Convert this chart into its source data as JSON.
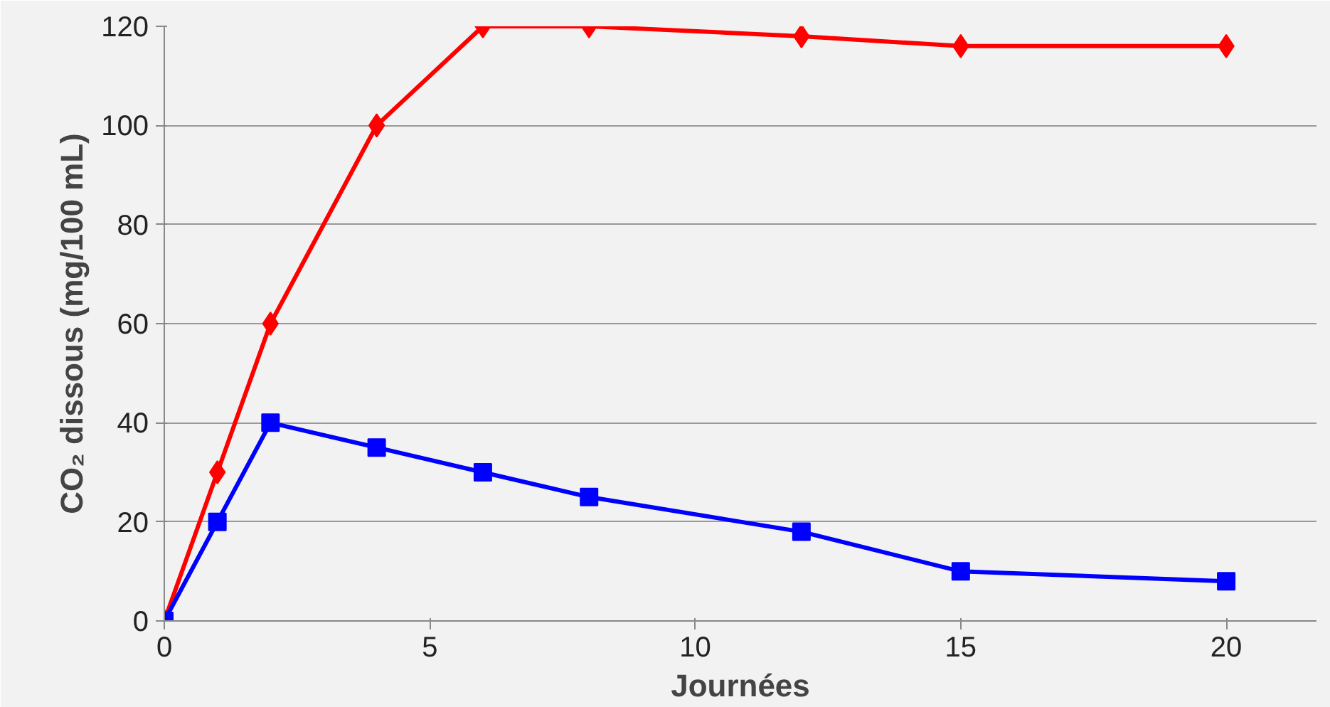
{
  "chart_data": {
    "type": "line",
    "xlabel": "Journées",
    "ylabel": "CO₂ dissous (mg/100 mL)",
    "x": [
      0,
      1,
      2,
      4,
      6,
      8,
      12,
      15,
      20
    ],
    "series": [
      {
        "color": "#ff0000",
        "marker": "diamond",
        "values": [
          0,
          30,
          60,
          100,
          120,
          120,
          118,
          116,
          116
        ]
      },
      {
        "color": "#0000ff",
        "marker": "square",
        "values": [
          0,
          20,
          40,
          35,
          30,
          25,
          18,
          10,
          8
        ]
      }
    ],
    "xlim": [
      0,
      21.7
    ],
    "xticks": [
      0,
      5,
      10,
      15,
      20
    ],
    "ylim": [
      0,
      120
    ],
    "yticks": [
      0,
      20,
      40,
      60,
      80,
      100,
      120
    ],
    "grid": "y",
    "line_style": "solid"
  }
}
